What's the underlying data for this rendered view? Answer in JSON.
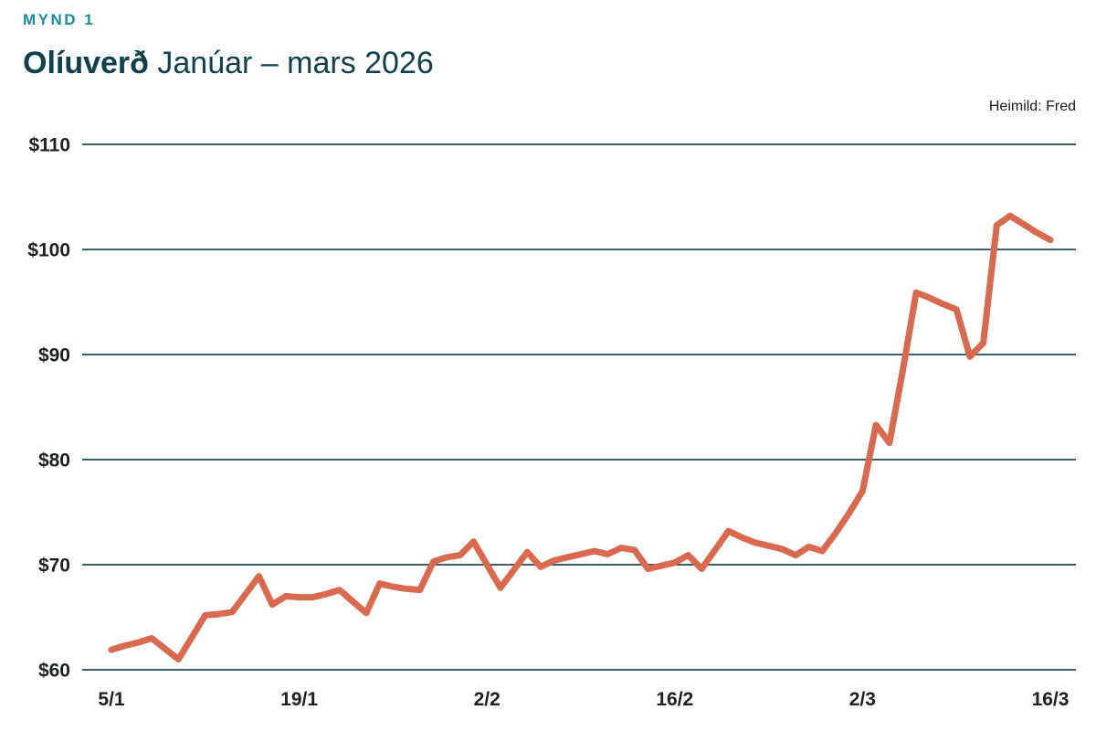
{
  "header": {
    "kicker": "MYND 1",
    "title_bold": "Olíuverð",
    "title_rest": " Janúar – mars 2026",
    "source": "Heimild: Fred"
  },
  "colors": {
    "kicker": "#1A8A9E",
    "title": "#10404E",
    "grid": "#3F5F68",
    "line": "#D96A4F",
    "tick_text": "#1D2021"
  },
  "chart_data": {
    "type": "line",
    "title": "Olíuverð Janúar – mars 2026",
    "series_name": "Olíuverð (USD)",
    "x_start_label": "5/1",
    "x_end_label": "16/3",
    "x_interval": "daily",
    "x_days_total": 70,
    "x_tick_days": [
      0,
      14,
      28,
      42,
      56,
      70
    ],
    "x_tick_labels": [
      "5/1",
      "19/1",
      "2/2",
      "16/2",
      "2/3",
      "16/3"
    ],
    "y_ticks": [
      60,
      70,
      80,
      90,
      100,
      110
    ],
    "y_tick_prefix": "$",
    "ylim": [
      60,
      110
    ],
    "grid": "horizontal-only",
    "legend": "none",
    "values": [
      61.9,
      62.3,
      62.6,
      63.0,
      62.0,
      61.0,
      63.1,
      65.2,
      65.3,
      65.5,
      67.2,
      68.9,
      66.2,
      67.0,
      66.9,
      66.9,
      67.2,
      67.6,
      66.5,
      65.4,
      68.2,
      67.9,
      67.7,
      67.6,
      70.3,
      70.7,
      70.9,
      72.2,
      70.0,
      67.8,
      69.5,
      71.2,
      69.8,
      70.4,
      70.7,
      71.0,
      71.3,
      71.0,
      71.6,
      71.4,
      69.6,
      69.9,
      70.2,
      70.9,
      69.6,
      71.4,
      73.2,
      72.6,
      72.1,
      71.8,
      71.5,
      70.9,
      71.7,
      71.3,
      73.0,
      74.9,
      77.0,
      83.3,
      81.6,
      88.5,
      95.9,
      95.4,
      94.8,
      94.3,
      89.8,
      91.1,
      102.3,
      103.2,
      102.4,
      101.6,
      100.9
    ]
  }
}
